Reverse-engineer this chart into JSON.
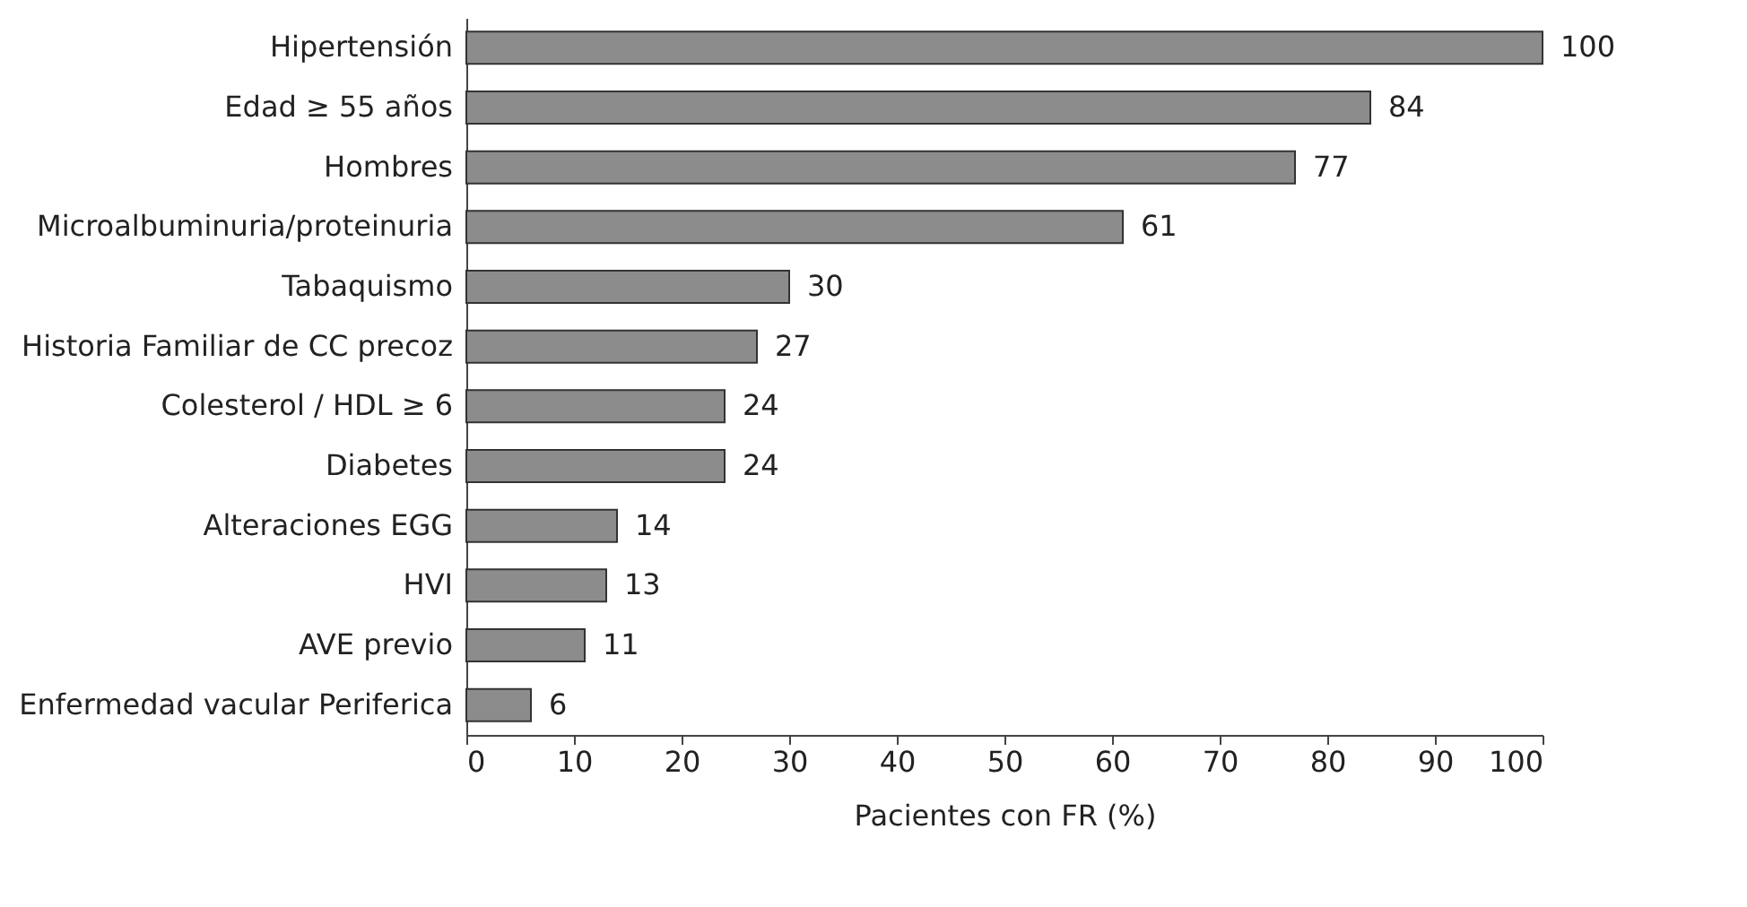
{
  "chart_data": {
    "type": "bar",
    "orientation": "horizontal",
    "categories": [
      "Hipertensión",
      "Edad ≥ 55 años",
      "Hombres",
      "Microalbuminuria/proteinuria",
      "Tabaquismo",
      "Historia Familiar de CC precoz",
      "Colesterol / HDL ≥ 6",
      "Diabetes",
      "Alteraciones EGG",
      "HVI",
      "AVE previo",
      "Enfermedad vacular Periferica"
    ],
    "values": [
      100,
      84,
      77,
      61,
      30,
      27,
      24,
      24,
      14,
      13,
      11,
      6
    ],
    "color": "#8c8c8c",
    "xlim": [
      0,
      100
    ],
    "xticks": [
      0,
      10,
      20,
      30,
      40,
      50,
      60,
      70,
      80,
      90,
      100
    ],
    "xlabel": "Pacientes con FR (%)",
    "data_labels": true,
    "grid": false
  }
}
